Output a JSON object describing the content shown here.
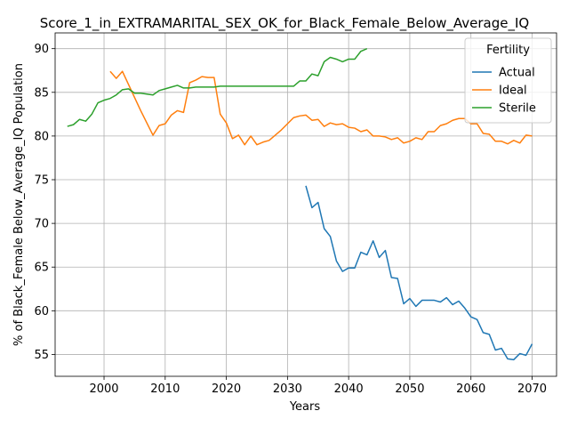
{
  "chart_data": {
    "type": "line",
    "title": "Score_1_in_EXTRAMARITAL_SEX_OK_for_Black_Female_Below_Average_IQ",
    "xlabel": "Years",
    "ylabel": "% of Black_Female Below_Average_IQ Population",
    "xlim": [
      1992,
      2074
    ],
    "ylim": [
      52.5,
      91.8
    ],
    "xticks": [
      2000,
      2010,
      2020,
      2030,
      2040,
      2050,
      2060,
      2070
    ],
    "yticks": [
      55,
      60,
      65,
      70,
      75,
      80,
      85,
      90
    ],
    "grid": true,
    "legend": {
      "title": "Fertility",
      "placement": "top-right"
    },
    "series": [
      {
        "name": "Actual",
        "color": "#1f77b4",
        "x": [
          2033,
          2034,
          2035,
          2036,
          2037,
          2038,
          2039,
          2040,
          2041,
          2042,
          2043,
          2044,
          2045,
          2046,
          2047,
          2048,
          2049,
          2050,
          2051,
          2052,
          2053,
          2054,
          2055,
          2056,
          2057,
          2058,
          2059,
          2060,
          2061,
          2062,
          2063,
          2064,
          2065,
          2066,
          2067,
          2068,
          2069,
          2070
        ],
        "y": [
          74.3,
          71.8,
          72.4,
          69.4,
          68.5,
          65.7,
          64.5,
          64.9,
          64.9,
          66.7,
          66.4,
          68.0,
          66.1,
          66.9,
          63.8,
          63.7,
          60.8,
          61.4,
          60.5,
          61.2,
          61.2,
          61.2,
          61.0,
          61.5,
          60.7,
          61.1,
          60.3,
          59.3,
          59.0,
          57.5,
          57.3,
          55.5,
          55.7,
          54.5,
          54.4,
          55.1,
          54.9,
          56.2
        ]
      },
      {
        "name": "Ideal",
        "color": "#ff7f0e",
        "x": [
          2001,
          2002,
          2003,
          2004,
          2005,
          2006,
          2007,
          2008,
          2009,
          2010,
          2011,
          2012,
          2013,
          2014,
          2015,
          2016,
          2017,
          2018,
          2019,
          2020,
          2021,
          2022,
          2023,
          2024,
          2025,
          2026,
          2027,
          2028,
          2029,
          2030,
          2031,
          2032,
          2033,
          2034,
          2035,
          2036,
          2037,
          2038,
          2039,
          2040,
          2041,
          2042,
          2043,
          2044,
          2045,
          2046,
          2047,
          2048,
          2049,
          2050,
          2051,
          2052,
          2053,
          2054,
          2055,
          2056,
          2057,
          2058,
          2059,
          2060,
          2061,
          2062,
          2063,
          2064,
          2065,
          2066,
          2067,
          2068,
          2069,
          2070
        ],
        "y": [
          87.4,
          86.6,
          87.4,
          85.9,
          84.4,
          82.9,
          81.5,
          80.1,
          81.2,
          81.4,
          82.4,
          82.9,
          82.7,
          86.1,
          86.4,
          86.8,
          86.7,
          86.7,
          82.5,
          81.5,
          79.7,
          80.1,
          79.0,
          80.0,
          79.0,
          79.3,
          79.5,
          80.1,
          80.7,
          81.4,
          82.1,
          82.3,
          82.4,
          81.8,
          81.9,
          81.1,
          81.5,
          81.3,
          81.4,
          81.0,
          80.9,
          80.5,
          80.7,
          80.0,
          80.0,
          79.9,
          79.6,
          79.8,
          79.2,
          79.4,
          79.8,
          79.6,
          80.5,
          80.5,
          81.2,
          81.4,
          81.8,
          82.0,
          82.0,
          81.4,
          81.4,
          80.3,
          80.2,
          79.4,
          79.4,
          79.1,
          79.5,
          79.2,
          80.1,
          80.0
        ]
      },
      {
        "name": "Sterile",
        "color": "#2ca02c",
        "x": [
          1994,
          1995,
          1996,
          1997,
          1998,
          1999,
          2000,
          2001,
          2002,
          2003,
          2004,
          2005,
          2006,
          2007,
          2008,
          2009,
          2010,
          2011,
          2012,
          2013,
          2014,
          2015,
          2016,
          2017,
          2018,
          2019,
          2020,
          2021,
          2022,
          2023,
          2024,
          2025,
          2026,
          2027,
          2028,
          2029,
          2030,
          2031,
          2032,
          2033,
          2034,
          2035,
          2036,
          2037,
          2038,
          2039,
          2040,
          2041,
          2042,
          2043
        ],
        "y": [
          81.1,
          81.3,
          81.9,
          81.7,
          82.5,
          83.8,
          84.1,
          84.3,
          84.7,
          85.3,
          85.4,
          84.9,
          84.9,
          84.8,
          84.7,
          85.2,
          85.4,
          85.6,
          85.8,
          85.5,
          85.5,
          85.6,
          85.6,
          85.6,
          85.6,
          85.7,
          85.7,
          85.7,
          85.7,
          85.7,
          85.7,
          85.7,
          85.7,
          85.7,
          85.7,
          85.7,
          85.7,
          85.7,
          86.3,
          86.3,
          87.1,
          86.9,
          88.5,
          89.0,
          88.8,
          88.5,
          88.8,
          88.8,
          89.7,
          90.0
        ]
      }
    ]
  }
}
